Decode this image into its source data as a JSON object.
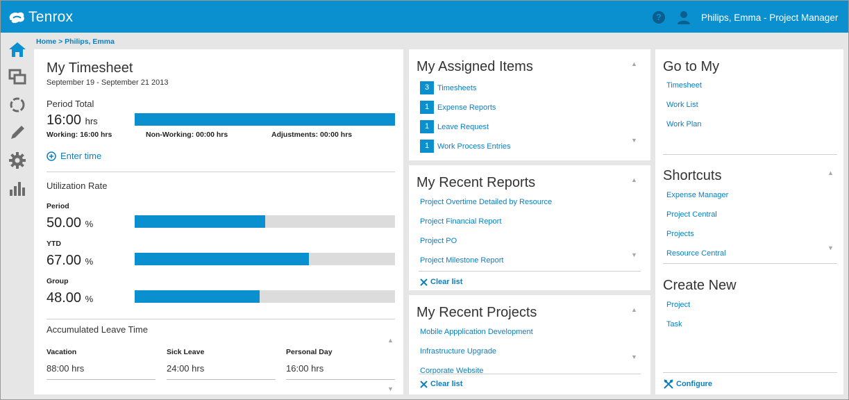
{
  "header": {
    "app_name": "Tenrox",
    "user_label": "Philips, Emma - Project Manager",
    "help_glyph": "?",
    "accent_color": "#0a8fcf"
  },
  "sidebar": {
    "items": [
      {
        "name": "home",
        "icon": "home-icon"
      },
      {
        "name": "windows",
        "icon": "windows-icon"
      },
      {
        "name": "cycle",
        "icon": "refresh-icon"
      },
      {
        "name": "edit",
        "icon": "pencil-icon"
      },
      {
        "name": "settings",
        "icon": "gear-icon"
      },
      {
        "name": "analytics",
        "icon": "bar-chart-icon"
      }
    ]
  },
  "breadcrumb": "Home > Philips, Emma",
  "timesheet": {
    "title": "My Timesheet",
    "date_range": "September 19 - September 21 2013",
    "period_total_label": "Period Total",
    "period_total_value": "16:00",
    "period_total_unit": "hrs",
    "period_total_fill": 1.0,
    "working": "Working: 16:00 hrs",
    "non_working": "Non-Working: 00:00 hrs",
    "adjustments": "Adjustments: 00:00 hrs",
    "enter_time": "Enter time",
    "utilization_title": "Utilization Rate",
    "utilization": [
      {
        "label": "Period",
        "value": "50.00",
        "unit": "%",
        "fill": 0.5
      },
      {
        "label": "YTD",
        "value": "67.00",
        "unit": "%",
        "fill": 0.67
      },
      {
        "label": "Group",
        "value": "48.00",
        "unit": "%",
        "fill": 0.48
      }
    ],
    "leave_title": "Accumulated Leave Time",
    "leave": [
      {
        "label": "Vacation",
        "value": "88:00 hrs"
      },
      {
        "label": "Sick Leave",
        "value": "24:00 hrs"
      },
      {
        "label": "Personal Day",
        "value": "16:00 hrs"
      }
    ]
  },
  "assigned": {
    "title": "My Assigned Items",
    "items": [
      {
        "count": "3",
        "label": "Timesheets"
      },
      {
        "count": "1",
        "label": "Expense Reports"
      },
      {
        "count": "1",
        "label": "Leave Request"
      },
      {
        "count": "1",
        "label": "Work Process Entries"
      }
    ]
  },
  "reports": {
    "title": "My Recent Reports",
    "items": [
      "Project Overtime Detailed by Resource",
      "Project Financial Report",
      "Project PO",
      "Project Milestone Report"
    ],
    "clear": "Clear list"
  },
  "projects": {
    "title": "My Recent Projects",
    "items": [
      "Mobile Appplication Development",
      "Infrastructure Upgrade",
      "Corporate Website"
    ],
    "clear": "Clear list"
  },
  "goto": {
    "title": "Go to My",
    "items": [
      "Timesheet",
      "Work List",
      "Work Plan"
    ]
  },
  "shortcuts": {
    "title": "Shortcuts",
    "items": [
      "Expense Manager",
      "Project Central",
      "Projects",
      "Resource Central"
    ]
  },
  "create": {
    "title": "Create New",
    "items": [
      "Project",
      "Task"
    ]
  },
  "configure": "Configure"
}
